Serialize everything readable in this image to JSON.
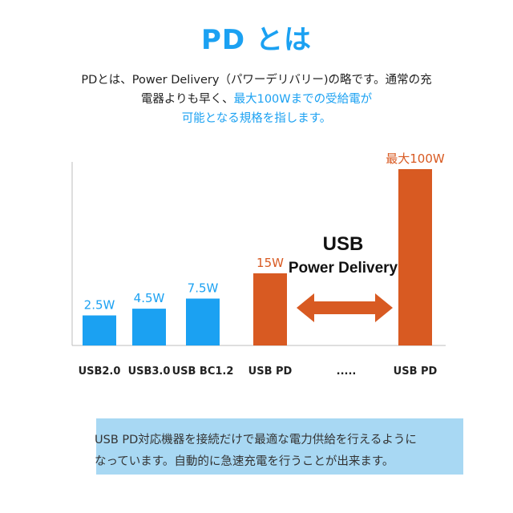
{
  "title": "PD とは",
  "intro": {
    "line1": "PDとは、Power Delivery（パワーデリバリー)の略です。通常の充",
    "line2_a": "電器よりも早く、",
    "line2_b": "最大100Wまでの受給電が",
    "line3": "可能となる規格を指します。"
  },
  "chart_data": {
    "type": "bar",
    "categories": [
      "USB2.0",
      "USB3.0",
      "USB BC1.2",
      "USB PD",
      ".....",
      "USB PD"
    ],
    "values": [
      2.5,
      4.5,
      7.5,
      15,
      null,
      100
    ],
    "value_labels": [
      "2.5W",
      "4.5W",
      "7.5W",
      "15W",
      "",
      "最大100W"
    ],
    "colors": [
      "#1ba1f2",
      "#1ba1f2",
      "#1ba1f2",
      "#d85a22",
      null,
      "#d85a22"
    ],
    "annotation": {
      "line1": "USB",
      "line2": "Power Delivery"
    },
    "arrow_color": "#d85a22"
  },
  "note": {
    "line1": "USB PD対応機器を接続だけで最適な電力供給を行えるように",
    "line2": "なっています。自動的に急速充電を行うことが出来ます。"
  }
}
